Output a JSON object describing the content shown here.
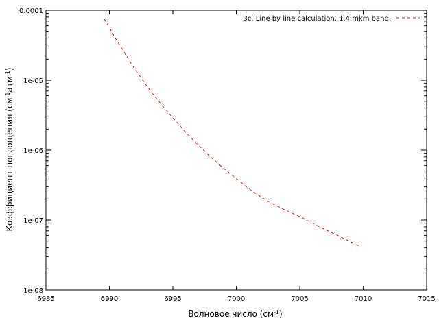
{
  "chart_data": {
    "type": "line",
    "title": "",
    "xlabel": {
      "main": "Волновое число (см",
      "sup": "-1",
      "close": ")"
    },
    "ylabel": {
      "pre": "Коэффициент поглощения (см",
      "sup1": "-1",
      "mid": "атм",
      "sup2": "-1",
      "close": ")"
    },
    "xlim": [
      6985,
      7015
    ],
    "ylim": [
      1e-08,
      0.0001
    ],
    "yscale": "log",
    "xticks": [
      6985,
      6990,
      6995,
      7000,
      7005,
      7010,
      7015
    ],
    "xtick_labels": [
      "6985",
      "6990",
      "6995",
      "7000",
      "7005",
      "7010",
      "7015"
    ],
    "yticks": [
      1e-08,
      1e-07,
      1e-06,
      1e-05,
      0.0001
    ],
    "ytick_labels": [
      "1e-08",
      "1e-07",
      "1e-06",
      "1e-05",
      "0.0001"
    ],
    "grid": false,
    "legend_position": "top-right",
    "series": [
      {
        "name": "3c. Line by line calculation. 1.4 mkm band.",
        "color": "#ff0000",
        "dash": "dashed",
        "x": [
          6989.6,
          6990.0,
          6990.5,
          6991.0,
          6991.5,
          6992.0,
          6993.0,
          6994.0,
          6995.0,
          6996.0,
          6997.0,
          6998.0,
          6999.0,
          7000.0,
          7001.0,
          7002.0,
          7003.0,
          7004.0,
          7005.0,
          7006.0,
          7007.0,
          7008.0,
          7009.0,
          7009.8
        ],
        "y": [
          7.5e-05,
          5.6e-05,
          3.9e-05,
          2.8e-05,
          2e-05,
          1.45e-05,
          8e-06,
          4.7e-06,
          2.9e-06,
          1.8e-06,
          1.18e-06,
          7.9e-07,
          5.5e-07,
          3.9e-07,
          2.8e-07,
          2.1e-07,
          1.65e-07,
          1.35e-07,
          1.12e-07,
          9e-08,
          7.3e-08,
          6e-08,
          4.9e-08,
          4.1e-08
        ]
      }
    ]
  }
}
